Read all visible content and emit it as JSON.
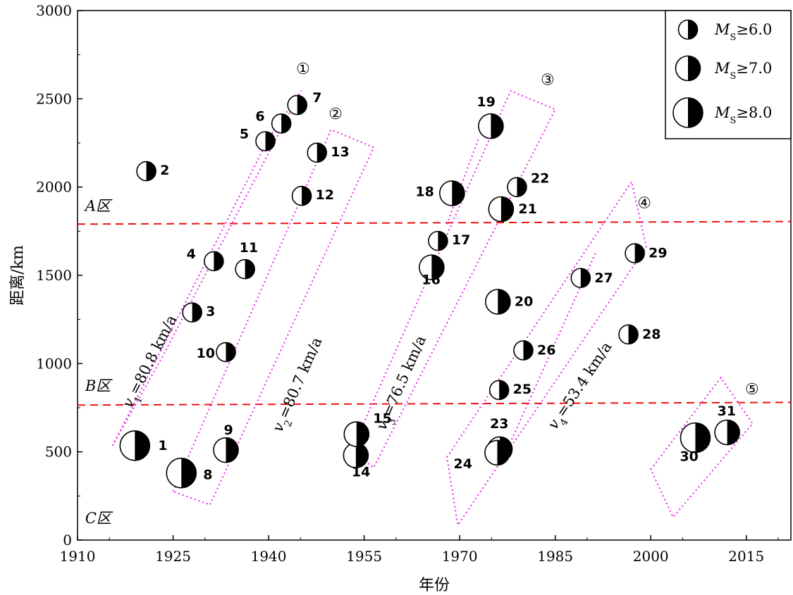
{
  "chart_data": {
    "type": "scatter",
    "xlabel": "年份",
    "ylabel": "距离/km",
    "xlim": [
      1910,
      2022
    ],
    "ylim": [
      0,
      3000
    ],
    "x_ticks": [
      1910,
      1925,
      1940,
      1955,
      1970,
      1985,
      2000,
      2015
    ],
    "y_ticks": [
      0,
      500,
      1000,
      1500,
      2000,
      2500,
      3000
    ],
    "events": [
      {
        "id": "1",
        "year": 1919.0,
        "distance": 535,
        "mag_class": 8
      },
      {
        "id": "2",
        "year": 1920.8,
        "distance": 2090,
        "mag_class": 6
      },
      {
        "id": "3",
        "year": 1928.0,
        "distance": 1290,
        "mag_class": 6
      },
      {
        "id": "4",
        "year": 1931.4,
        "distance": 1580,
        "mag_class": 6
      },
      {
        "id": "5",
        "year": 1939.5,
        "distance": 2260,
        "mag_class": 6
      },
      {
        "id": "6",
        "year": 1942.0,
        "distance": 2360,
        "mag_class": 6
      },
      {
        "id": "7",
        "year": 1944.5,
        "distance": 2465,
        "mag_class": 6
      },
      {
        "id": "8",
        "year": 1926.3,
        "distance": 380,
        "mag_class": 8
      },
      {
        "id": "9",
        "year": 1933.3,
        "distance": 510,
        "mag_class": 7
      },
      {
        "id": "10",
        "year": 1933.3,
        "distance": 1065,
        "mag_class": 6
      },
      {
        "id": "11",
        "year": 1936.3,
        "distance": 1535,
        "mag_class": 6
      },
      {
        "id": "12",
        "year": 1945.2,
        "distance": 1950,
        "mag_class": 6
      },
      {
        "id": "13",
        "year": 1947.6,
        "distance": 2195,
        "mag_class": 6
      },
      {
        "id": "14",
        "year": 1953.7,
        "distance": 480,
        "mag_class": 7
      },
      {
        "id": "15",
        "year": 1953.8,
        "distance": 600,
        "mag_class": 7
      },
      {
        "id": "16",
        "year": 1965.6,
        "distance": 1545,
        "mag_class": 7
      },
      {
        "id": "17",
        "year": 1966.6,
        "distance": 1695,
        "mag_class": 6
      },
      {
        "id": "18",
        "year": 1968.8,
        "distance": 1965,
        "mag_class": 7
      },
      {
        "id": "19",
        "year": 1974.9,
        "distance": 2345,
        "mag_class": 7
      },
      {
        "id": "20",
        "year": 1976.0,
        "distance": 1350,
        "mag_class": 7
      },
      {
        "id": "21",
        "year": 1976.5,
        "distance": 1875,
        "mag_class": 7
      },
      {
        "id": "22",
        "year": 1979.0,
        "distance": 2000,
        "mag_class": 6
      },
      {
        "id": "23",
        "year": 1976.3,
        "distance": 515,
        "mag_class": 7
      },
      {
        "id": "24",
        "year": 1975.9,
        "distance": 495,
        "mag_class": 7
      },
      {
        "id": "25",
        "year": 1976.2,
        "distance": 850,
        "mag_class": 6
      },
      {
        "id": "26",
        "year": 1980.0,
        "distance": 1075,
        "mag_class": 6
      },
      {
        "id": "27",
        "year": 1989.0,
        "distance": 1485,
        "mag_class": 6
      },
      {
        "id": "28",
        "year": 1996.5,
        "distance": 1165,
        "mag_class": 6
      },
      {
        "id": "29",
        "year": 1997.5,
        "distance": 1625,
        "mag_class": 6
      },
      {
        "id": "30",
        "year": 2007.0,
        "distance": 580,
        "mag_class": 8
      },
      {
        "id": "31",
        "year": 2012.0,
        "distance": 610,
        "mag_class": 7
      }
    ],
    "zone_boundaries": [
      {
        "points": [
          [
            1910,
            1790
          ],
          [
            2022,
            1805
          ]
        ]
      },
      {
        "points": [
          [
            1910,
            765
          ],
          [
            2022,
            780
          ]
        ]
      }
    ],
    "zone_labels": [
      {
        "text": "A区",
        "year": 1911.2,
        "distance": 1865
      },
      {
        "text": "B区",
        "year": 1911.2,
        "distance": 845
      },
      {
        "text": "C区",
        "year": 1911.2,
        "distance": 95
      }
    ],
    "migration_zones": [
      {
        "label": "①",
        "label_pos": [
          1945.4,
          2640
        ],
        "corners": [
          [
            1915.5,
            535
          ],
          [
            1940.0,
            2275
          ],
          [
            1945.1,
            2545
          ],
          [
            1923.5,
            1050
          ]
        ],
        "lines": []
      },
      {
        "label": "②",
        "label_pos": [
          1950.5,
          2385
        ],
        "corners": [
          [
            1925.0,
            275
          ],
          [
            1949.8,
            2325
          ],
          [
            1956.5,
            2225
          ],
          [
            1930.8,
            200
          ]
        ],
        "lines": []
      },
      {
        "label": "③",
        "label_pos": [
          1983.8,
          2580
        ],
        "corners": [
          [
            1953.0,
            505
          ],
          [
            1978.0,
            2545
          ],
          [
            1985.0,
            2440
          ],
          [
            1956.5,
            410
          ]
        ],
        "lines": [
          [
            [
              1968.0,
              1790
            ],
            [
              1973.0,
              2280
            ]
          ]
        ]
      },
      {
        "label": "④",
        "label_pos": [
          1999.0,
          1880
        ],
        "corners": [
          [
            1968.0,
            470
          ],
          [
            1997.0,
            2030
          ],
          [
            1999.3,
            1660
          ],
          [
            1969.7,
            85
          ]
        ],
        "lines": [
          [
            [
              1976.8,
              460
            ],
            [
              1991.5,
              1640
            ]
          ]
        ]
      },
      {
        "label": "⑤",
        "label_pos": [
          2015.9,
          825
        ],
        "corners": [
          [
            2000.0,
            400
          ],
          [
            2011.0,
            920
          ],
          [
            2016.0,
            660
          ],
          [
            2003.5,
            130
          ]
        ],
        "lines": []
      }
    ],
    "velocity_labels": [
      {
        "text": "v1=80.8 km/a",
        "year": 1922.0,
        "distance": 1000
      },
      {
        "text": "v2=80.7 km/a",
        "year": 1945.2,
        "distance": 870
      },
      {
        "text": "v3=76.5 km/a",
        "year": 1961.5,
        "distance": 880
      },
      {
        "text": "v4=53.4 km/a",
        "year": 1989.5,
        "distance": 860
      }
    ],
    "legend": {
      "position": "top-right",
      "entries": [
        {
          "label": "MS≥6.0",
          "mag_class": 6
        },
        {
          "label": "MS≥7.0",
          "mag_class": 7
        },
        {
          "label": "MS≥8.0",
          "mag_class": 8
        }
      ]
    }
  }
}
